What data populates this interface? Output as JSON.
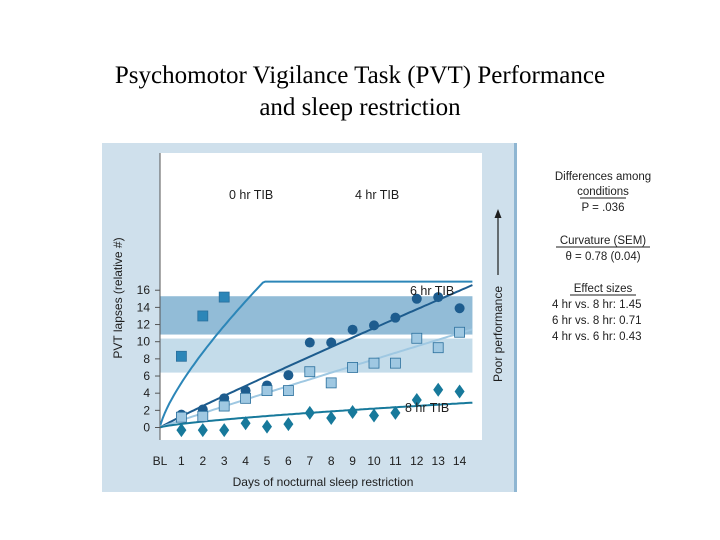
{
  "slide": {
    "title_line1": "Psychomotor Vigilance Task (PVT) Performance",
    "title_line2": "and sleep restriction"
  },
  "chart_data": {
    "type": "scatter",
    "ylabel": "PVT lapses (relative #)",
    "xlabel": "Days of nocturnal sleep restriction",
    "y_ticks": [
      "0",
      "2",
      "4",
      "6",
      "8",
      "10",
      "12",
      "14",
      "16"
    ],
    "x_ticks": [
      "BL",
      "1",
      "2",
      "3",
      "4",
      "5",
      "6",
      "7",
      "8",
      "9",
      "10",
      "11",
      "12",
      "13",
      "14"
    ],
    "ylim": [
      -0.5,
      16
    ],
    "xlim": [
      0,
      14.6
    ],
    "bands": [
      {
        "from": 6.4,
        "to": 10.6,
        "color": "#c4dcea"
      },
      {
        "from": 10.6,
        "to": 15.3,
        "color": "#92bcd7"
      }
    ],
    "arrow_label": "Poor performance",
    "series": [
      {
        "name": "0 hr TIB",
        "marker": "square",
        "color": "#2c86b8",
        "x": [
          1,
          2,
          3
        ],
        "y": [
          8.3,
          13.0,
          15.2
        ],
        "fit": {
          "kind": "power",
          "a": 5.2,
          "b": 0.75
        }
      },
      {
        "name": "4 hr TIB",
        "marker": "circle",
        "color": "#1d5c8e",
        "x": [
          1,
          2,
          3,
          4,
          5,
          6,
          7,
          8,
          9,
          10,
          11,
          12,
          13,
          14
        ],
        "y": [
          1.5,
          2.1,
          3.4,
          4.3,
          4.9,
          6.1,
          9.9,
          9.9,
          11.4,
          11.9,
          12.8,
          15.0,
          15.2,
          13.9
        ],
        "fit": {
          "kind": "power",
          "a": 1.3,
          "b": 0.95
        }
      },
      {
        "name": "6 hr TIB",
        "marker": "square",
        "color": "#9fc8e2",
        "x": [
          1,
          2,
          3,
          4,
          5,
          6,
          7,
          8,
          9,
          10,
          11,
          12,
          13,
          14
        ],
        "y": [
          1.2,
          1.3,
          2.5,
          3.4,
          4.3,
          4.3,
          6.5,
          5.2,
          7.0,
          7.5,
          7.5,
          10.4,
          9.3,
          11.1
        ],
        "fit": {
          "kind": "power",
          "a": 0.85,
          "b": 0.97
        }
      },
      {
        "name": "8 hr TIB",
        "marker": "diamond",
        "color": "#17799b",
        "x": [
          1,
          2,
          3,
          4,
          5,
          6,
          7,
          8,
          9,
          10,
          11,
          12,
          13,
          14
        ],
        "y": [
          -0.3,
          -0.3,
          -0.3,
          0.5,
          0.1,
          0.4,
          1.7,
          1.1,
          1.8,
          1.4,
          1.7,
          3.2,
          4.4,
          4.2
        ],
        "fit": {
          "kind": "power",
          "a": 0.42,
          "b": 0.72
        }
      }
    ],
    "side_panel": {
      "differences_line1": "Differences among",
      "differences_line2": "conditions",
      "p_value": "P = .036",
      "curvature_title": "Curvature (SEM)",
      "curvature_value": "θ = 0.78 (0.04)",
      "effect_title": "Effect sizes",
      "effect_1": "4 hr vs. 8 hr: 1.45",
      "effect_2": "6 hr vs. 8 hr: 0.71",
      "effect_3": "4 hr vs. 6 hr: 0.43"
    }
  }
}
